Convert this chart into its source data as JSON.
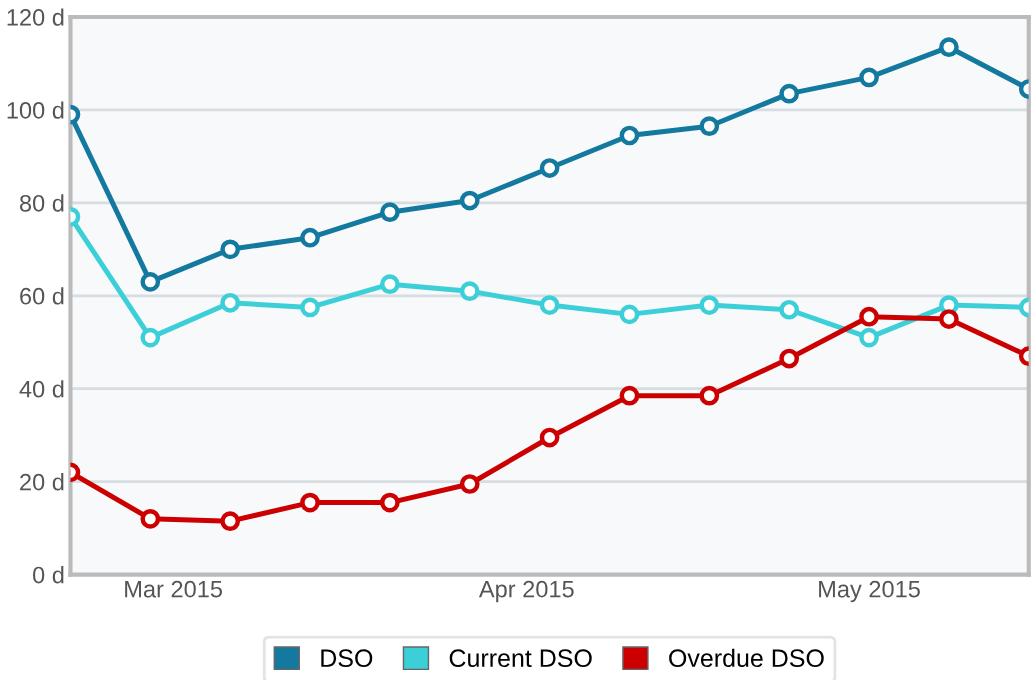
{
  "chart_data": {
    "type": "line",
    "x": [
      "2015-02-20",
      "2015-02-27",
      "2015-03-06",
      "2015-03-13",
      "2015-03-20",
      "2015-03-27",
      "2015-04-03",
      "2015-04-10",
      "2015-04-17",
      "2015-04-24",
      "2015-05-01",
      "2015-05-08",
      "2015-05-15"
    ],
    "series": [
      {
        "name": "DSO",
        "color": "#13799f",
        "values": [
          99,
          63,
          70,
          72.5,
          78,
          80.5,
          87.5,
          94.5,
          96.5,
          103.5,
          107,
          113.5,
          104.5
        ]
      },
      {
        "name": "Current DSO",
        "color": "#3dcfd8",
        "values": [
          77,
          51,
          58.5,
          57.5,
          62.5,
          61,
          58,
          56,
          58,
          57,
          51,
          58,
          57.5
        ]
      },
      {
        "name": "Overdue DSO",
        "color": "#cc0000",
        "values": [
          22,
          12,
          11.5,
          15.5,
          15.5,
          19.5,
          29.5,
          38.5,
          38.5,
          46.5,
          55.5,
          55,
          47
        ]
      }
    ],
    "xlim": [
      "2015-02-20",
      "2015-05-15"
    ],
    "xticks": [
      {
        "value": "2015-03-01",
        "label": "Mar 2015"
      },
      {
        "value": "2015-04-01",
        "label": "Apr 2015"
      },
      {
        "value": "2015-05-01",
        "label": "May 2015"
      }
    ],
    "ylim": [
      0,
      120
    ],
    "yticks": [
      {
        "value": 0,
        "label": "0 d"
      },
      {
        "value": 20,
        "label": "20 d"
      },
      {
        "value": 40,
        "label": "40 d"
      },
      {
        "value": 60,
        "label": "60 d"
      },
      {
        "value": 80,
        "label": "80 d"
      },
      {
        "value": 100,
        "label": "100 d"
      },
      {
        "value": 120,
        "label": "120 d"
      }
    ],
    "grid": "y",
    "legend": "bottom",
    "marker": "circle",
    "line_style": "solid"
  }
}
